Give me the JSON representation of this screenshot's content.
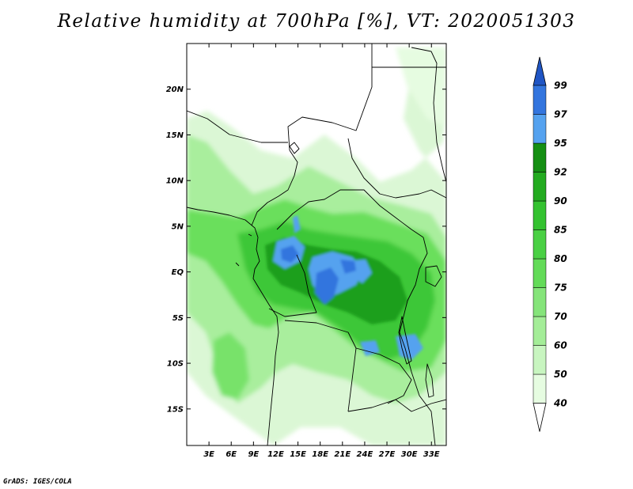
{
  "title": "Relative humidity at 700hPa [%], VT: 2020051303",
  "credit": "GrADS: IGES/COLA",
  "map": {
    "lat_range": [
      -19,
      25
    ],
    "lon_range": [
      0,
      35
    ],
    "lat_ticks": [
      {
        "value": 20,
        "label": "20N"
      },
      {
        "value": 15,
        "label": "15N"
      },
      {
        "value": 10,
        "label": "10N"
      },
      {
        "value": 5,
        "label": "5N"
      },
      {
        "value": 0,
        "label": "EQ"
      },
      {
        "value": -5,
        "label": "5S"
      },
      {
        "value": -10,
        "label": "10S"
      },
      {
        "value": -15,
        "label": "15S"
      }
    ],
    "lon_ticks": [
      {
        "value": 3,
        "label": "3E"
      },
      {
        "value": 6,
        "label": "6E"
      },
      {
        "value": 9,
        "label": "9E"
      },
      {
        "value": 12,
        "label": "12E"
      },
      {
        "value": 15,
        "label": "15E"
      },
      {
        "value": 18,
        "label": "18E"
      },
      {
        "value": 21,
        "label": "21E"
      },
      {
        "value": 24,
        "label": "24E"
      },
      {
        "value": 27,
        "label": "27E"
      },
      {
        "value": 30,
        "label": "30E"
      },
      {
        "value": 33,
        "label": "33E"
      }
    ]
  },
  "colorbar": {
    "levels": [
      40,
      50,
      60,
      70,
      75,
      80,
      85,
      90,
      92,
      95,
      97,
      99
    ],
    "colors": [
      "#ffffff",
      "#e6fce1",
      "#c8f5c0",
      "#a4ed98",
      "#85e47a",
      "#63db58",
      "#4ad044",
      "#34c230",
      "#23ab20",
      "#158f13",
      "#55a2ef",
      "#3375de",
      "#1f55c4"
    ]
  },
  "colors": {
    "coast": "#000000",
    "frame": "#000000"
  }
}
